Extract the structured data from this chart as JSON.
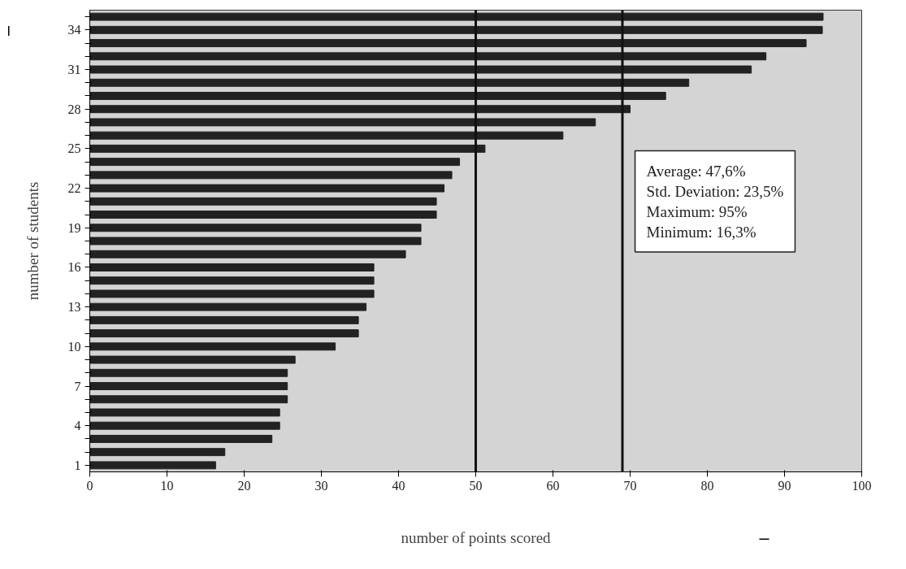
{
  "chart_data": {
    "type": "bar",
    "orientation": "horizontal",
    "xlabel": "number of points scored",
    "ylabel": "number of students",
    "categories": [
      null,
      "34",
      null,
      null,
      "31",
      null,
      null,
      "28",
      null,
      null,
      "25",
      null,
      null,
      "22",
      null,
      null,
      "19",
      null,
      null,
      "16",
      null,
      null,
      "13",
      null,
      null,
      "10",
      null,
      null,
      "7",
      null,
      null,
      "4",
      null,
      null,
      "1"
    ],
    "values": [
      95,
      94.9,
      92.8,
      87.6,
      85.7,
      77.6,
      74.6,
      70,
      65.5,
      61.3,
      51.2,
      47.9,
      46.9,
      45.9,
      44.9,
      44.9,
      42.9,
      42.9,
      40.9,
      36.8,
      36.8,
      36.8,
      35.8,
      34.8,
      34.8,
      31.8,
      26.6,
      25.6,
      25.6,
      25.6,
      24.6,
      24.6,
      23.6,
      17.5,
      16.3
    ],
    "color": "#222222",
    "xlim": [
      0,
      100
    ],
    "xticks": [
      0,
      10,
      20,
      30,
      40,
      50,
      60,
      70,
      80,
      90,
      100
    ],
    "ref_lines": [
      {
        "axis": "x",
        "value": 50,
        "color": "#111111"
      },
      {
        "axis": "x",
        "value": 69,
        "color": "#111111"
      }
    ],
    "annotations": [
      "Average: 47,6%",
      "Std. Deviation: 23,5%",
      "Maximum: 95%",
      "Minimum: 16,3%"
    ],
    "grid": false
  }
}
